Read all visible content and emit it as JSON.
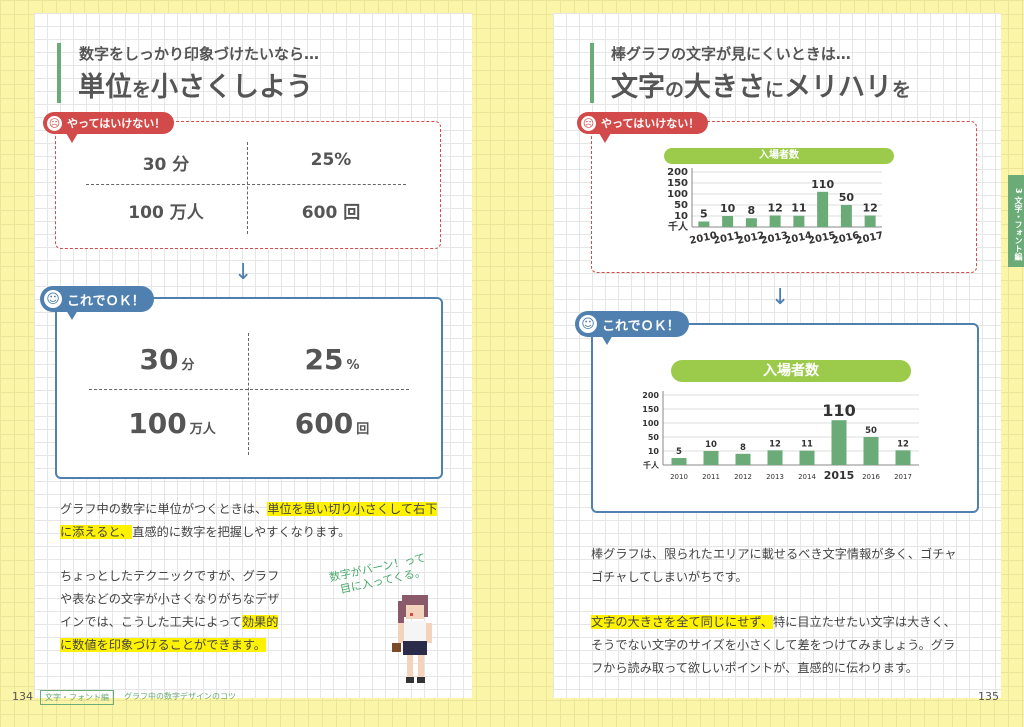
{
  "left": {
    "subtitle": "数字をしっかり印象づけたいなら…",
    "title_a": "単位",
    "title_b": "を",
    "title_c": "小さくしよう",
    "bad_label": "やってはいけない！",
    "bad_cells": [
      "30 分",
      "25%",
      "100 万人",
      "600 回"
    ],
    "good_label": "これでＯＫ！",
    "good_cells": [
      {
        "num": "30",
        "unit": "分"
      },
      {
        "num": "25",
        "unit": "%"
      },
      {
        "num": "100",
        "unit": "万人"
      },
      {
        "num": "600",
        "unit": "回"
      }
    ],
    "para1_a": "グラフ中の数字に単位がつくときは、",
    "para1_hl1": "単位を思い切り小さくして右下",
    "para1_hl2": "に添えると、",
    "para1_b": "直感的に数字を把握しやすくなります。",
    "para2_l1": "ちょっとしたテクニックですが、グラフ",
    "para2_l2": "や表などの文字が小さくなりがちなデザ",
    "para2_l3a": "インでは、こうした工夫によって",
    "para2_l3hl": "効果的",
    "para2_l4hl": "に数値を印象づけることができます。",
    "hand_l1": "数字がバーン！って",
    "hand_l2": "目に入ってくる。",
    "page_number": "134",
    "chapter_tab": "文字・フォント編",
    "chapter_title": "グラフ中の数字デザインのコツ"
  },
  "right": {
    "subtitle": "棒グラフの文字が見にくいときは…",
    "title_a": "文字",
    "title_b": "の",
    "title_c": "大きさ",
    "title_d": "に",
    "title_e": "メリハリ",
    "title_f": "を",
    "bad_label": "やってはいけない！",
    "good_label": "これでＯＫ！",
    "para1_l1": "棒グラフは、限られたエリアに載せるべき文字情報が多く、ゴチャ",
    "para1_l2": "ゴチャしてしまいがちです。",
    "para2_hl": "文字の大きさを全て同じにせず、",
    "para2_l1": "特に目立たせたい文字は大きく、",
    "para2_l2": "そうでない文字のサイズを小さくして差をつけてみましょう。グラ",
    "para2_l3": "フから読み取って欲しいポイントが、直感的に伝わります。",
    "page_number": "135",
    "side_tab": "3 文字・フォント編"
  },
  "chart_data": [
    {
      "type": "bar",
      "title": "入場者数",
      "categories": [
        "2010",
        "2011",
        "2012",
        "2013",
        "2014",
        "2015",
        "2016",
        "2017"
      ],
      "values": [
        5,
        10,
        8,
        12,
        11,
        110,
        50,
        12
      ],
      "yticks": [
        "200",
        "150",
        "100",
        "50",
        "10"
      ],
      "yunit": "千人",
      "ylim": [
        0,
        200
      ],
      "color": "#6bab78"
    },
    {
      "type": "bar",
      "title": "入場者数",
      "categories": [
        "2010",
        "2011",
        "2012",
        "2013",
        "2014",
        "2015",
        "2016",
        "2017"
      ],
      "values": [
        5,
        10,
        8,
        12,
        11,
        110,
        50,
        12
      ],
      "yticks": [
        "200",
        "150",
        "100",
        "50",
        "10"
      ],
      "yunit": "千人",
      "ylim": [
        0,
        200
      ],
      "color": "#6bab78"
    }
  ]
}
